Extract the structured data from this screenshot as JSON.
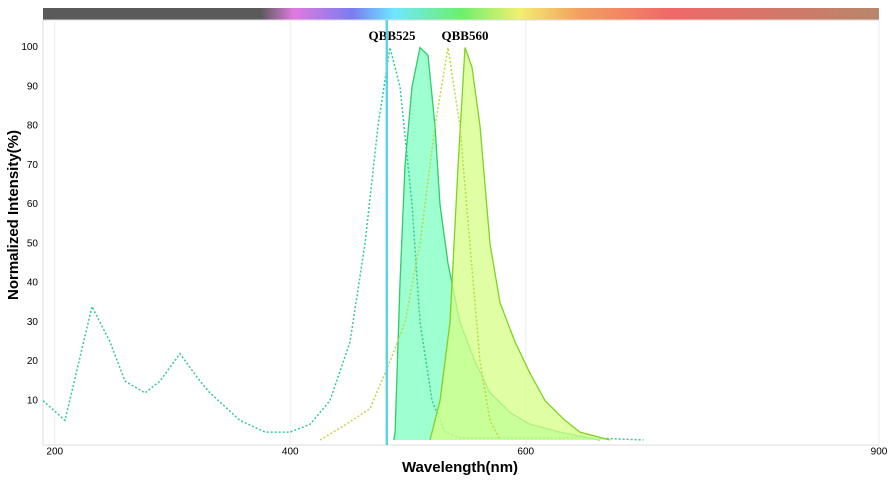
{
  "chart_data": {
    "type": "spectrum",
    "x_label": "Wavelength(nm)",
    "y_label": "Normalized Intensity(%)",
    "xlim": [
      190,
      900
    ],
    "ylim": [
      0,
      107
    ],
    "xticks": [
      200,
      400,
      600,
      900
    ],
    "yticks": [
      10,
      20,
      30,
      40,
      50,
      60,
      70,
      80,
      90,
      100
    ],
    "grid": true,
    "laser_line": {
      "x": 482,
      "color": "#5fd3e0"
    },
    "dyes": [
      {
        "name": "QBB525",
        "excitation": {
          "color": "#35c99a",
          "x": [
            190,
            208.7,
            231.6,
            246.9,
            259.6,
            276.6,
            289.4,
            306.3,
            323.3,
            331.8,
            357.3,
            378.5,
            399.8,
            416.8,
            433.7,
            450.7,
            463.5,
            474.5,
            484.7,
            493.2,
            503.4,
            510.2,
            520.4,
            531.4,
            544.1,
            600,
            660,
            700
          ],
          "values": [
            10,
            5,
            34,
            25,
            15,
            12,
            15,
            22,
            15,
            12,
            5,
            2,
            2,
            4,
            10,
            25,
            50,
            80,
            100,
            90,
            60,
            30,
            10,
            2,
            0.5,
            0.5,
            0.5,
            0
          ]
        },
        "emission": {
          "color": "#2ecc6a",
          "fill": "#7dffc2",
          "x": [
            488,
            489,
            493.2,
            497.4,
            503.4,
            510.2,
            517,
            522.9,
            527.2,
            534,
            544.1,
            556.9,
            569.6,
            586.6,
            603.6,
            629.1,
            663
          ],
          "values": [
            0,
            2,
            40,
            70,
            90,
            100,
            98,
            80,
            60,
            45,
            30,
            20,
            12,
            7,
            4,
            2,
            0
          ]
        }
      },
      {
        "name": "QBB560",
        "excitation": {
          "color": "#b8dc40",
          "x": [
            425.3,
            442.2,
            467.7,
            484.7,
            497.4,
            510.2,
            522.9,
            534,
            544.1,
            552.6,
            561.1,
            569.6,
            578.1
          ],
          "values": [
            0,
            3,
            8,
            20,
            30,
            50,
            80,
            100,
            80,
            50,
            20,
            5,
            0
          ]
        },
        "emission": {
          "color": "#7ed321",
          "fill": "#d6ff85",
          "x": [
            518.7,
            527.2,
            535.7,
            542.5,
            548.4,
            554.3,
            561.1,
            569.6,
            578.1,
            590.9,
            603.6,
            616.4,
            633.3,
            646.1,
            671.5
          ],
          "values": [
            0,
            10,
            30,
            70,
            100,
            95,
            80,
            50,
            35,
            25,
            17,
            10,
            5,
            2,
            0
          ]
        }
      }
    ]
  }
}
